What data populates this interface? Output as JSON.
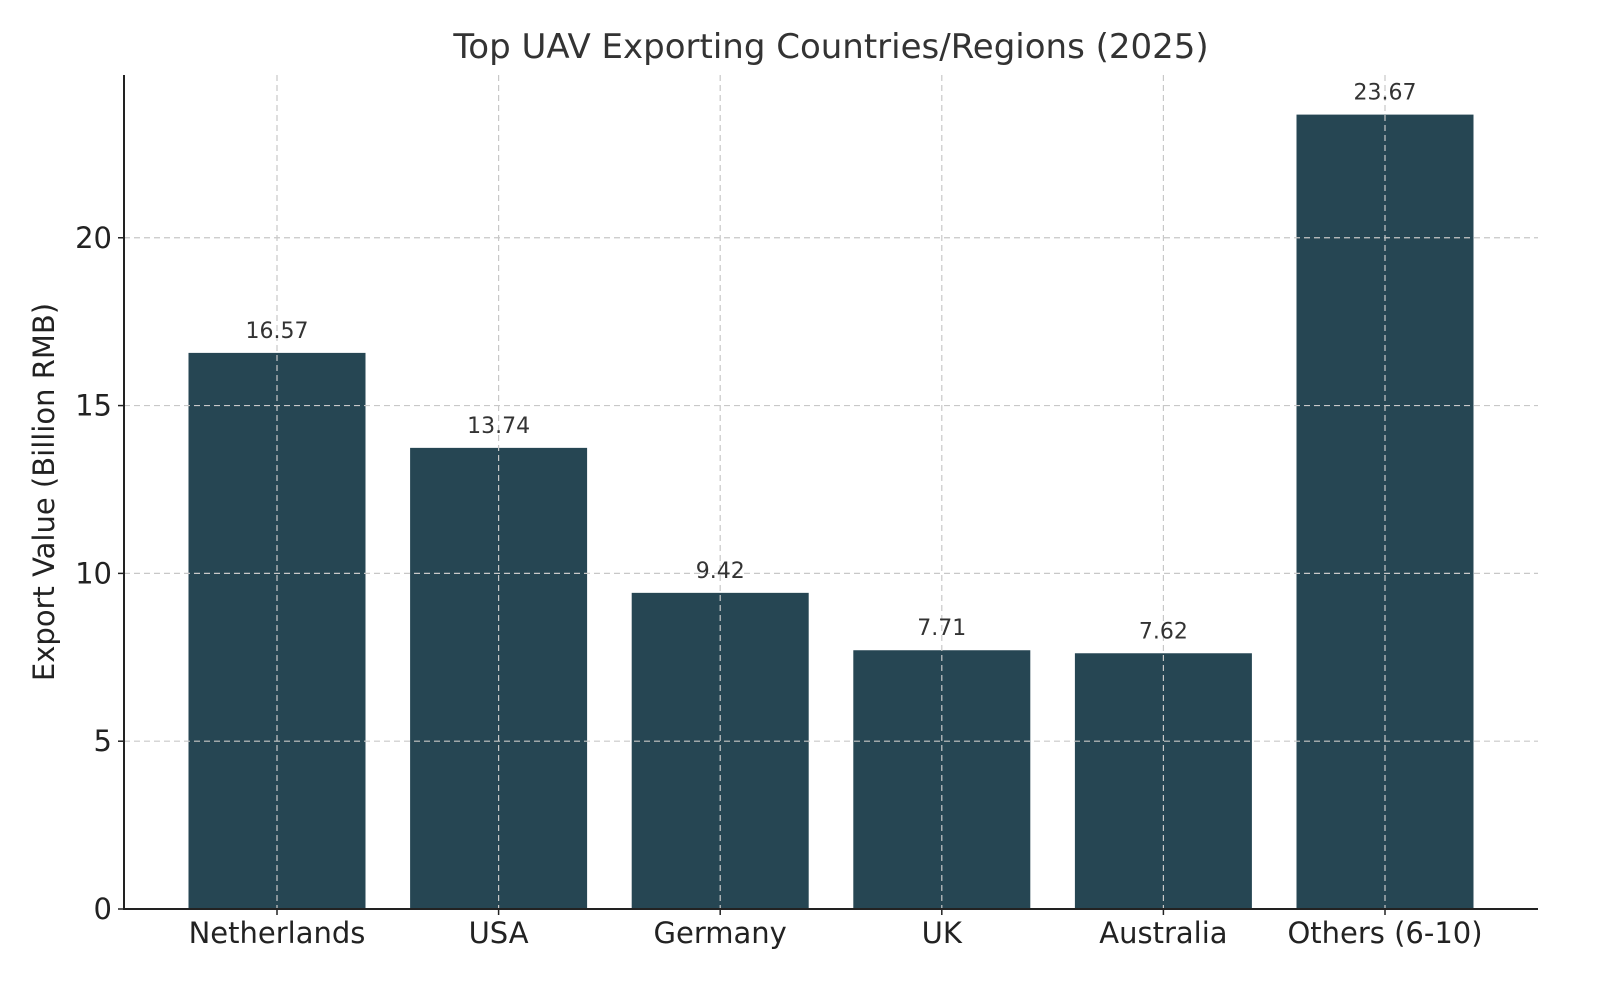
{
  "chart_data": {
    "type": "bar",
    "title": "Top UAV Exporting Countries/Regions (2025)",
    "xlabel": "",
    "ylabel": "Export Value (Billion RMB)",
    "categories": [
      "Netherlands",
      "USA",
      "Germany",
      "UK",
      "Australia",
      "Others (6-10)"
    ],
    "values": [
      16.57,
      13.74,
      9.42,
      7.71,
      7.62,
      23.67
    ],
    "data_labels": [
      "16.57",
      "13.74",
      "9.42",
      "7.71",
      "7.62",
      "23.67"
    ],
    "ylim": [
      0,
      24.85
    ],
    "yticks": [
      0,
      5,
      10,
      15,
      20
    ],
    "ytick_labels": [
      "0",
      "5",
      "10",
      "15",
      "20"
    ],
    "grid": true,
    "colors": {
      "bar": "#264653",
      "grid": "#c8c8c8",
      "text": "#333333"
    }
  }
}
